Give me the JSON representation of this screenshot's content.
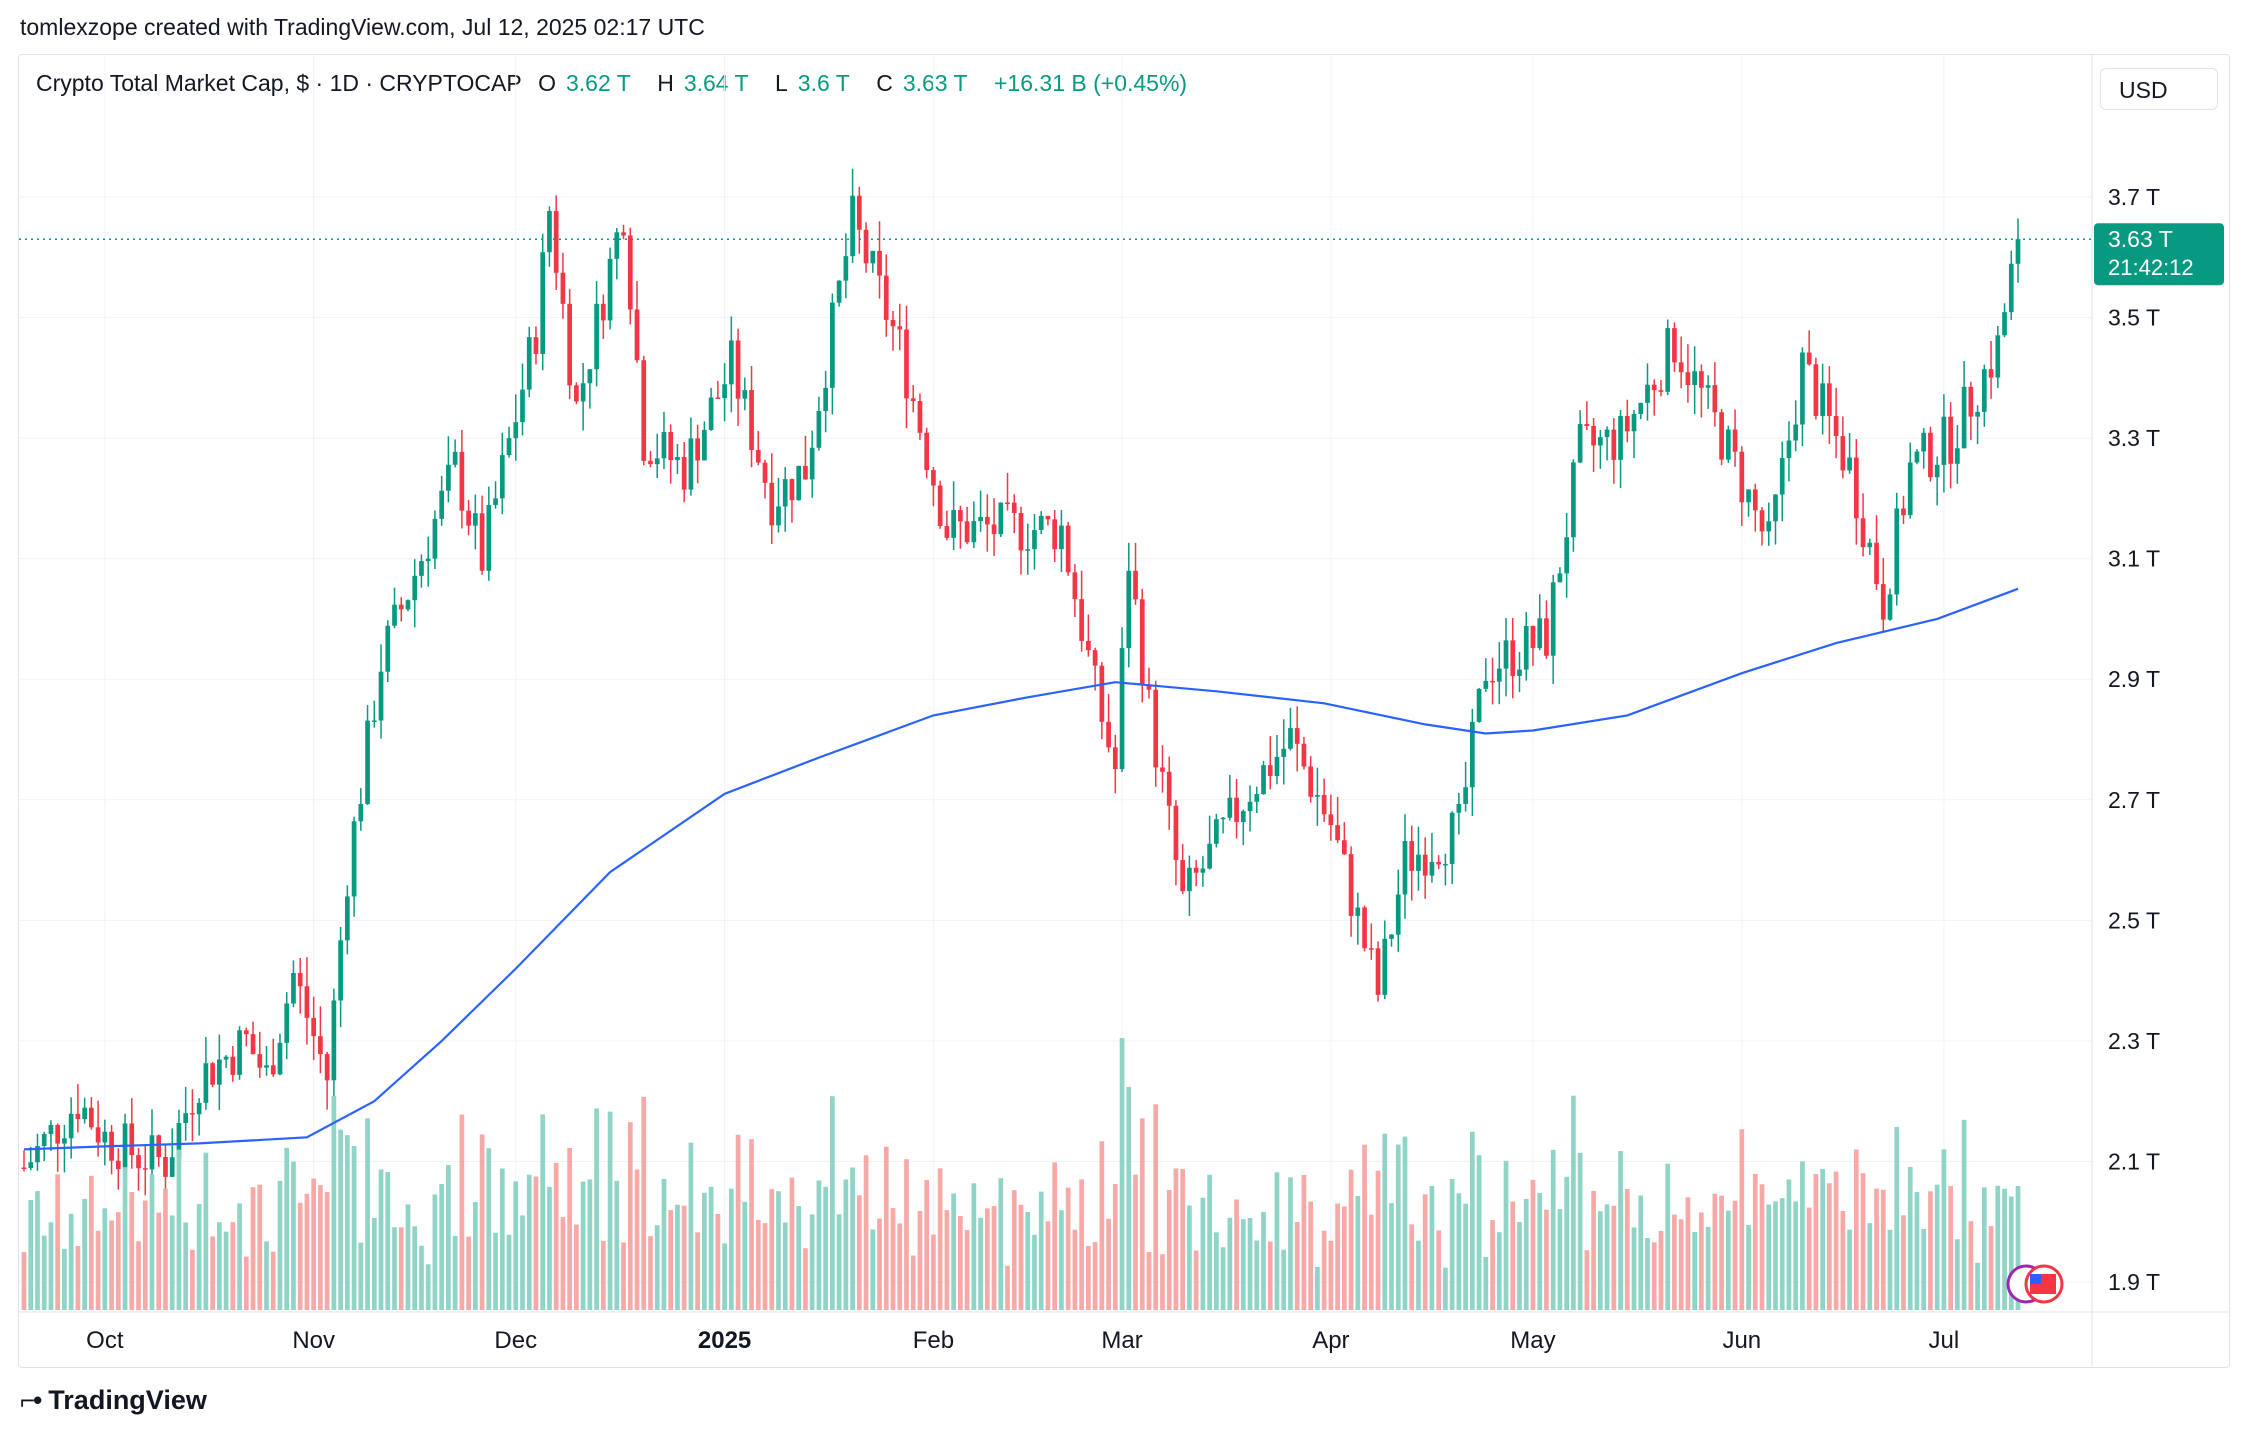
{
  "attribution": "tomlexzope created with TradingView.com, Jul 12, 2025 02:17 UTC",
  "legend": {
    "symbol": "Crypto Total Market Cap, $ · 1D · CRYPTOCAP",
    "open_label": "O",
    "open": "3.62 T",
    "high_label": "H",
    "high": "3.64 T",
    "low_label": "L",
    "low": "3.6 T",
    "close_label": "C",
    "close": "3.63 T",
    "change": "+16.31 B (+0.45%)"
  },
  "currency": "USD",
  "price_tag": {
    "price": "3.63 T",
    "countdown": "21:42:12"
  },
  "brand": "TradingView",
  "colors": {
    "up": "#089981",
    "down": "#f23645",
    "ma": "#2962ff",
    "up_vol": "#8fd4c6",
    "down_vol": "#f7a9a7"
  },
  "chart_data": {
    "type": "candlestick",
    "title": "Crypto Total Market Cap, $ · 1D · CRYPTOCAP",
    "y_unit": "T (trillion USD)",
    "ylim": [
      1.85,
      3.9
    ],
    "y_ticks": [
      "3.7 T",
      "3.5 T",
      "3.3 T",
      "3.1 T",
      "2.9 T",
      "2.7 T",
      "2.5 T",
      "2.3 T",
      "2.1 T",
      "1.9 T"
    ],
    "x_ticks": [
      "Oct",
      "Nov",
      "Dec",
      "2025",
      "Feb",
      "Mar",
      "Apr",
      "May",
      "Jun",
      "Jul"
    ],
    "x_range": [
      "2024-09-19",
      "2025-07-12"
    ],
    "last_price": 3.63,
    "grid": true,
    "series": [
      {
        "name": "",
        "type": "line",
        "note": "moving average line (blue)",
        "points": [
          [
            "2024-09-19",
            2.12
          ],
          [
            "2024-10-01",
            2.125
          ],
          [
            "2024-10-15",
            2.13
          ],
          [
            "2024-10-31",
            2.14
          ],
          [
            "2024-11-10",
            2.2
          ],
          [
            "2024-11-20",
            2.3
          ],
          [
            "2024-12-01",
            2.42
          ],
          [
            "2024-12-15",
            2.58
          ],
          [
            "2025-01-01",
            2.71
          ],
          [
            "2025-01-15",
            2.77
          ],
          [
            "2025-02-01",
            2.84
          ],
          [
            "2025-02-15",
            2.87
          ],
          [
            "2025-02-28",
            2.895
          ],
          [
            "2025-03-15",
            2.88
          ],
          [
            "2025-03-31",
            2.86
          ],
          [
            "2025-04-15",
            2.825
          ],
          [
            "2025-04-24",
            2.81
          ],
          [
            "2025-05-01",
            2.815
          ],
          [
            "2025-05-15",
            2.84
          ],
          [
            "2025-06-01",
            2.91
          ],
          [
            "2025-06-15",
            2.96
          ],
          [
            "2025-06-30",
            3.0
          ],
          [
            "2025-07-12",
            3.05
          ]
        ]
      },
      {
        "name": "",
        "type": "close_path",
        "note": "approximate daily close path (candles)",
        "points": [
          [
            "2024-09-19",
            2.09
          ],
          [
            "2024-09-27",
            2.2
          ],
          [
            "2024-10-01",
            2.14
          ],
          [
            "2024-10-06",
            2.11
          ],
          [
            "2024-10-10",
            2.1
          ],
          [
            "2024-10-15",
            2.24
          ],
          [
            "2024-10-22",
            2.3
          ],
          [
            "2024-10-25",
            2.24
          ],
          [
            "2024-10-29",
            2.41
          ],
          [
            "2024-11-03",
            2.24
          ],
          [
            "2024-11-06",
            2.58
          ],
          [
            "2024-11-11",
            2.93
          ],
          [
            "2024-11-22",
            3.25
          ],
          [
            "2024-11-26",
            3.1
          ],
          [
            "2024-12-04",
            3.48
          ],
          [
            "2024-12-06",
            3.68
          ],
          [
            "2024-12-10",
            3.35
          ],
          [
            "2024-12-17",
            3.68
          ],
          [
            "2024-12-20",
            3.3
          ],
          [
            "2024-12-26",
            3.25
          ],
          [
            "2025-01-02",
            3.42
          ],
          [
            "2025-01-08",
            3.2
          ],
          [
            "2025-01-13",
            3.25
          ],
          [
            "2025-01-20",
            3.66
          ],
          [
            "2025-01-27",
            3.45
          ],
          [
            "2025-02-03",
            3.15
          ],
          [
            "2025-02-10",
            3.15
          ],
          [
            "2025-02-20",
            3.15
          ],
          [
            "2025-02-25",
            2.88
          ],
          [
            "2025-02-28",
            2.75
          ],
          [
            "2025-03-02",
            3.1
          ],
          [
            "2025-03-05",
            2.85
          ],
          [
            "2025-03-10",
            2.53
          ],
          [
            "2025-03-20",
            2.72
          ],
          [
            "2025-03-26",
            2.8
          ],
          [
            "2025-04-01",
            2.66
          ],
          [
            "2025-04-08",
            2.38
          ],
          [
            "2025-04-12",
            2.6
          ],
          [
            "2025-04-20",
            2.65
          ],
          [
            "2025-04-24",
            2.92
          ],
          [
            "2025-05-03",
            2.97
          ],
          [
            "2025-05-08",
            3.28
          ],
          [
            "2025-05-14",
            3.3
          ],
          [
            "2025-05-22",
            3.46
          ],
          [
            "2025-05-30",
            3.28
          ],
          [
            "2025-06-05",
            3.12
          ],
          [
            "2025-06-10",
            3.42
          ],
          [
            "2025-06-17",
            3.25
          ],
          [
            "2025-06-22",
            3.03
          ],
          [
            "2025-06-26",
            3.25
          ],
          [
            "2025-07-02",
            3.3
          ],
          [
            "2025-07-09",
            3.45
          ],
          [
            "2025-07-12",
            3.63
          ]
        ]
      }
    ]
  }
}
